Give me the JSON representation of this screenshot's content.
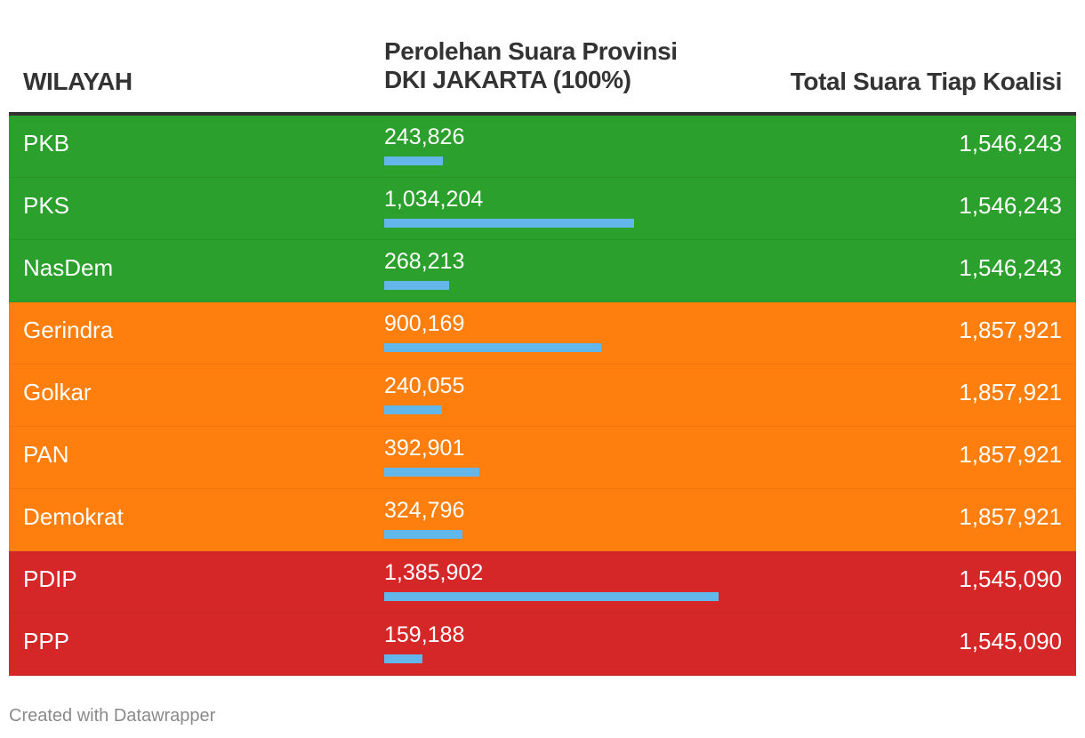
{
  "header": {
    "region_label": "WILAYAH",
    "votes_label_line1": "Perolehan Suara Provinsi",
    "votes_label_line2": "DKI JAKARTA (100%)",
    "total_label": "Total Suara Tiap Koalisi"
  },
  "footer": {
    "credit": "Created with Datawrapper"
  },
  "colors": {
    "green": "#2ca02c",
    "orange": "#ff7f0e",
    "red": "#d62728",
    "bar": "#62b6ea"
  },
  "rows": [
    {
      "name": "PKB",
      "votes": "243,826",
      "total": "1,546,243",
      "color": "#2ca02c"
    },
    {
      "name": "PKS",
      "votes": "1,034,204",
      "total": "1,546,243",
      "color": "#2ca02c"
    },
    {
      "name": "NasDem",
      "votes": "268,213",
      "total": "1,546,243",
      "color": "#2ca02c"
    },
    {
      "name": "Gerindra",
      "votes": "900,169",
      "total": "1,857,921",
      "color": "#ff7f0e"
    },
    {
      "name": "Golkar",
      "votes": "240,055",
      "total": "1,857,921",
      "color": "#ff7f0e"
    },
    {
      "name": "PAN",
      "votes": "392,901",
      "total": "1,857,921",
      "color": "#ff7f0e"
    },
    {
      "name": "Demokrat",
      "votes": "324,796",
      "total": "1,857,921",
      "color": "#ff7f0e"
    },
    {
      "name": "PDIP",
      "votes": "1,385,902",
      "total": "1,545,090",
      "color": "#d62728"
    },
    {
      "name": "PPP",
      "votes": "159,188",
      "total": "1,545,090",
      "color": "#d62728"
    }
  ],
  "chart_data": {
    "type": "table",
    "columns": [
      "WILAYAH",
      "Perolehan Suara Provinsi DKI JAKARTA (100%)",
      "Total Suara Tiap Koalisi"
    ],
    "categories": [
      "PKB",
      "PKS",
      "NasDem",
      "Gerindra",
      "Golkar",
      "PAN",
      "Demokrat",
      "PDIP",
      "PPP"
    ],
    "values": [
      243826,
      1034204,
      268213,
      900169,
      240055,
      392901,
      324796,
      1385902,
      159188
    ],
    "totals": [
      1546243,
      1546243,
      1546243,
      1857921,
      1857921,
      1857921,
      1857921,
      1545090,
      1545090
    ],
    "bar_max": 1385902
  }
}
